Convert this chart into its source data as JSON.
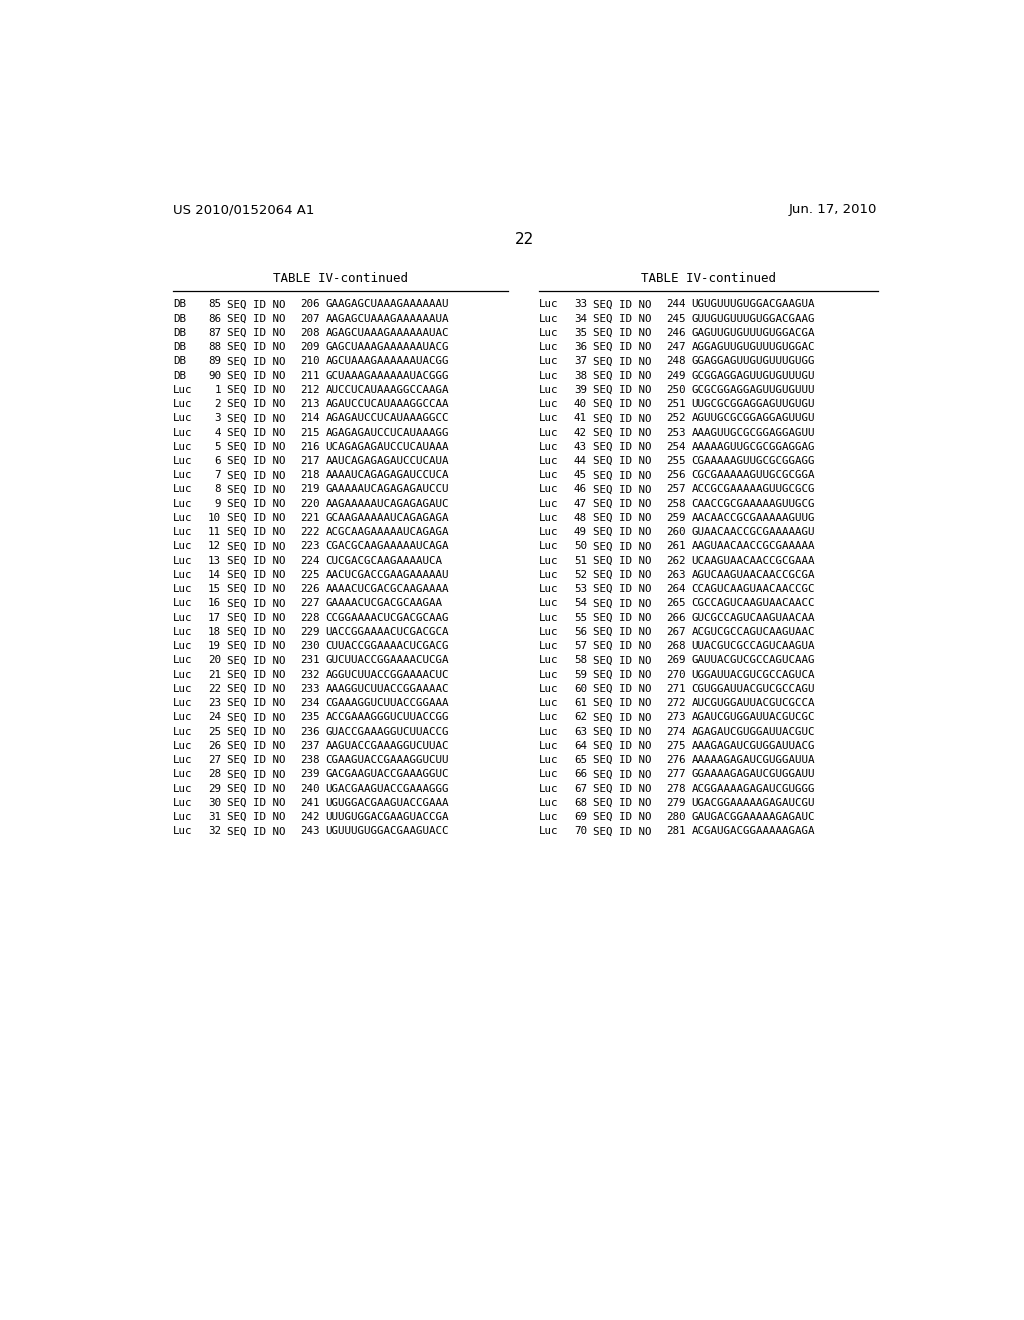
{
  "header_left": "US 2010/0152064 A1",
  "header_right": "Jun. 17, 2010",
  "page_number": "22",
  "table_title": "TABLE IV-continued",
  "bg_color": "#ffffff",
  "left_table": {
    "rows": [
      [
        "DB",
        "85",
        "SEQ ID NO",
        "206",
        "GAAGAGCUAAAGAAAAAAU"
      ],
      [
        "DB",
        "86",
        "SEQ ID NO",
        "207",
        "AAGAGCUAAAGAAAAAAUA"
      ],
      [
        "DB",
        "87",
        "SEQ ID NO",
        "208",
        "AGAGCUAAAGAAAAAAUAC"
      ],
      [
        "DB",
        "88",
        "SEQ ID NO",
        "209",
        "GAGCUAAAGAAAAAAUACG"
      ],
      [
        "DB",
        "89",
        "SEQ ID NO",
        "210",
        "AGCUAAAGAAAAAAUACGG"
      ],
      [
        "DB",
        "90",
        "SEQ ID NO",
        "211",
        "GCUAAAGAAAAAAUACGGG"
      ],
      [
        "Luc",
        "1",
        "SEQ ID NO",
        "212",
        "AUCCUCAUAAAGGCCAAGA"
      ],
      [
        "Luc",
        "2",
        "SEQ ID NO",
        "213",
        "AGAUCCUCAUAAAGGCCAA"
      ],
      [
        "Luc",
        "3",
        "SEQ ID NO",
        "214",
        "AGAGAUCCUCAUAAAGGCC"
      ],
      [
        "Luc",
        "4",
        "SEQ ID NO",
        "215",
        "AGAGAGAUCCUCAUAAAGG"
      ],
      [
        "Luc",
        "5",
        "SEQ ID NO",
        "216",
        "UCAGAGAGAUCCUCAUAAA"
      ],
      [
        "Luc",
        "6",
        "SEQ ID NO",
        "217",
        "AAUCAGAGAGAUCCUCAUA"
      ],
      [
        "Luc",
        "7",
        "SEQ ID NO",
        "218",
        "AAAAUCAGAGAGAUCCUCA"
      ],
      [
        "Luc",
        "8",
        "SEQ ID NO",
        "219",
        "GAAAAAUCAGAGAGAUCCU"
      ],
      [
        "Luc",
        "9",
        "SEQ ID NO",
        "220",
        "AAGAAAAAUCAGAGAGAUC"
      ],
      [
        "Luc",
        "10",
        "SEQ ID NO",
        "221",
        "GCAAGAAAAAUCAGAGAGA"
      ],
      [
        "Luc",
        "11",
        "SEQ ID NO",
        "222",
        "ACGCAAGAAAAAUCAGAGA"
      ],
      [
        "Luc",
        "12",
        "SEQ ID NO",
        "223",
        "CGACGCAAGAAAAAUCAGA"
      ],
      [
        "Luc",
        "13",
        "SEQ ID NO",
        "224",
        "CUCGACGCAAGAAAAUCA"
      ],
      [
        "Luc",
        "14",
        "SEQ ID NO",
        "225",
        "AACUCGACCGAAGAAAAAU"
      ],
      [
        "Luc",
        "15",
        "SEQ ID NO",
        "226",
        "AAAACUCGACGCAAGAAAA"
      ],
      [
        "Luc",
        "16",
        "SEQ ID NO",
        "227",
        "GAAAACUCGACGCAAGAA"
      ],
      [
        "Luc",
        "17",
        "SEQ ID NO",
        "228",
        "CCGGAAAACUCGACGCAAG"
      ],
      [
        "Luc",
        "18",
        "SEQ ID NO",
        "229",
        "UACCGGAAAACUCGACGCA"
      ],
      [
        "Luc",
        "19",
        "SEQ ID NO",
        "230",
        "CUUACCGGAAAACUCGACG"
      ],
      [
        "Luc",
        "20",
        "SEQ ID NO",
        "231",
        "GUCUUACCGGAAAACUCGA"
      ],
      [
        "Luc",
        "21",
        "SEQ ID NO",
        "232",
        "AGGUCUUACCGGAAAACUC"
      ],
      [
        "Luc",
        "22",
        "SEQ ID NO",
        "233",
        "AAAGGUCUUACCGGAAAAC"
      ],
      [
        "Luc",
        "23",
        "SEQ ID NO",
        "234",
        "CGAAAGGUCUUACCGGAAA"
      ],
      [
        "Luc",
        "24",
        "SEQ ID NO",
        "235",
        "ACCGAAAGGGUCUUACCGG"
      ],
      [
        "Luc",
        "25",
        "SEQ ID NO",
        "236",
        "GUACCGAAAGGUCUUACCG"
      ],
      [
        "Luc",
        "26",
        "SEQ ID NO",
        "237",
        "AAGUACCGAAAGGUCUUAC"
      ],
      [
        "Luc",
        "27",
        "SEQ ID NO",
        "238",
        "CGAAGUACCGAAAGGUCUU"
      ],
      [
        "Luc",
        "28",
        "SEQ ID NO",
        "239",
        "GACGAAGUACCGAAAGGUC"
      ],
      [
        "Luc",
        "29",
        "SEQ ID NO",
        "240",
        "UGACGAAGUACCGAAAGGG"
      ],
      [
        "Luc",
        "30",
        "SEQ ID NO",
        "241",
        "UGUGGACGAAGUACCGAAA"
      ],
      [
        "Luc",
        "31",
        "SEQ ID NO",
        "242",
        "UUUGUGGACGAAGUACCGA"
      ],
      [
        "Luc",
        "32",
        "SEQ ID NO",
        "243",
        "UGUUUGUGGACGAAGUACC"
      ]
    ]
  },
  "right_table": {
    "rows": [
      [
        "Luc",
        "33",
        "SEQ ID NO",
        "244",
        "UGUGUUUGUGGACGAAGUA"
      ],
      [
        "Luc",
        "34",
        "SEQ ID NO",
        "245",
        "GUUGUGUUUGUGGACGAAG"
      ],
      [
        "Luc",
        "35",
        "SEQ ID NO",
        "246",
        "GAGUUGUGUUUGUGGACGA"
      ],
      [
        "Luc",
        "36",
        "SEQ ID NO",
        "247",
        "AGGAGUUGUGUUUGUGGAC"
      ],
      [
        "Luc",
        "37",
        "SEQ ID NO",
        "248",
        "GGAGGAGUUGUGUUUGUGG"
      ],
      [
        "Luc",
        "38",
        "SEQ ID NO",
        "249",
        "GCGGAGGAGUUGUGUUUGU"
      ],
      [
        "Luc",
        "39",
        "SEQ ID NO",
        "250",
        "GCGCGGAGGAGUUGUGUUU"
      ],
      [
        "Luc",
        "40",
        "SEQ ID NO",
        "251",
        "UUGCGCGGAGGAGUUGUGU"
      ],
      [
        "Luc",
        "41",
        "SEQ ID NO",
        "252",
        "AGUUGCGCGGAGGAGUUGU"
      ],
      [
        "Luc",
        "42",
        "SEQ ID NO",
        "253",
        "AAAGUUGCGCGGAGGAGUU"
      ],
      [
        "Luc",
        "43",
        "SEQ ID NO",
        "254",
        "AAAAAGUUGCGCGGAGGAG"
      ],
      [
        "Luc",
        "44",
        "SEQ ID NO",
        "255",
        "CGAAAAAGUUGCGCGGAGG"
      ],
      [
        "Luc",
        "45",
        "SEQ ID NO",
        "256",
        "CGCGAAAAAGUUGCGCGGA"
      ],
      [
        "Luc",
        "46",
        "SEQ ID NO",
        "257",
        "ACCGCGAAAAAGUUGCGCG"
      ],
      [
        "Luc",
        "47",
        "SEQ ID NO",
        "258",
        "CAACCGCGAAAAAGUUGCG"
      ],
      [
        "Luc",
        "48",
        "SEQ ID NO",
        "259",
        "AACAACCGCGAAAAAGUUG"
      ],
      [
        "Luc",
        "49",
        "SEQ ID NO",
        "260",
        "GUAACAACCGCGAAAAAGU"
      ],
      [
        "Luc",
        "50",
        "SEQ ID NO",
        "261",
        "AAGUAACAACCGCGAAAAA"
      ],
      [
        "Luc",
        "51",
        "SEQ ID NO",
        "262",
        "UCAAGUAACAACCGCGAAA"
      ],
      [
        "Luc",
        "52",
        "SEQ ID NO",
        "263",
        "AGUCAAGUAACAACCGCGA"
      ],
      [
        "Luc",
        "53",
        "SEQ ID NO",
        "264",
        "CCAGUCAAGUAACAACCGC"
      ],
      [
        "Luc",
        "54",
        "SEQ ID NO",
        "265",
        "CGCCAGUCAAGUAACAACC"
      ],
      [
        "Luc",
        "55",
        "SEQ ID NO",
        "266",
        "GUCGCCAGUCAAGUAACAA"
      ],
      [
        "Luc",
        "56",
        "SEQ ID NO",
        "267",
        "ACGUCGCCAGUCAAGUAAC"
      ],
      [
        "Luc",
        "57",
        "SEQ ID NO",
        "268",
        "UUACGUCGCCAGUCAAGUA"
      ],
      [
        "Luc",
        "58",
        "SEQ ID NO",
        "269",
        "GAUUACGUCGCCAGUCAAG"
      ],
      [
        "Luc",
        "59",
        "SEQ ID NO",
        "270",
        "UGGAUUACGUCGCCAGUCA"
      ],
      [
        "Luc",
        "60",
        "SEQ ID NO",
        "271",
        "CGUGGAUUACGUCGCCAGU"
      ],
      [
        "Luc",
        "61",
        "SEQ ID NO",
        "272",
        "AUCGUGGAUUACGUCGCCA"
      ],
      [
        "Luc",
        "62",
        "SEQ ID NO",
        "273",
        "AGAUCGUGGAUUACGUCGC"
      ],
      [
        "Luc",
        "63",
        "SEQ ID NO",
        "274",
        "AGAGAUCGUGGAUUACGUC"
      ],
      [
        "Luc",
        "64",
        "SEQ ID NO",
        "275",
        "AAAGAGAUCGUGGAUUACG"
      ],
      [
        "Luc",
        "65",
        "SEQ ID NO",
        "276",
        "AAAAAGAGAUCGUGGAUUA"
      ],
      [
        "Luc",
        "66",
        "SEQ ID NO",
        "277",
        "GGAAAAGAGAUCGUGGAUU"
      ],
      [
        "Luc",
        "67",
        "SEQ ID NO",
        "278",
        "ACGGAAAAGAGAUCGUGGG"
      ],
      [
        "Luc",
        "68",
        "SEQ ID NO",
        "279",
        "UGACGGAAAAAGAGAUCGU"
      ],
      [
        "Luc",
        "69",
        "SEQ ID NO",
        "280",
        "GAUGACGGAAAAAGAGAUC"
      ],
      [
        "Luc",
        "70",
        "SEQ ID NO",
        "281",
        "ACGAUGACGGAAAAAGAGA"
      ]
    ]
  }
}
